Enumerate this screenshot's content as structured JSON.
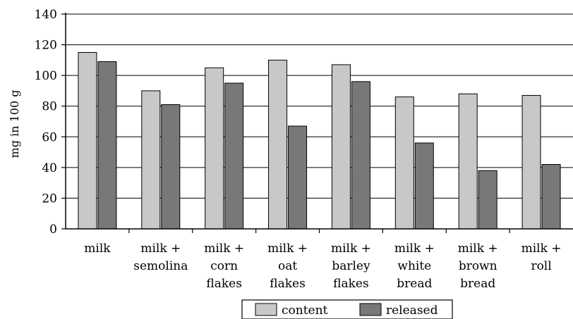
{
  "chart_data": {
    "type": "bar",
    "categories": [
      [
        "milk"
      ],
      [
        "milk +",
        "semolina"
      ],
      [
        "milk +",
        "corn",
        "flakes"
      ],
      [
        "milk +",
        "oat",
        "flakes"
      ],
      [
        "milk +",
        "barley",
        "flakes"
      ],
      [
        "milk +",
        "white",
        "bread"
      ],
      [
        "milk +",
        "brown",
        "bread"
      ],
      [
        "milk +",
        "roll"
      ]
    ],
    "series": [
      {
        "name": "content",
        "color": "#c8c8c8",
        "values": [
          115,
          90,
          105,
          110,
          107,
          86,
          88,
          87
        ]
      },
      {
        "name": "released",
        "color": "#787878",
        "values": [
          109,
          81,
          95,
          67,
          96,
          56,
          38,
          42
        ]
      }
    ],
    "ylabel": "mg in 100 g",
    "ylim": [
      0,
      140
    ],
    "yticks": [
      0,
      20,
      40,
      60,
      80,
      100,
      120,
      140
    ],
    "grid": true,
    "legend_position": "bottom"
  }
}
